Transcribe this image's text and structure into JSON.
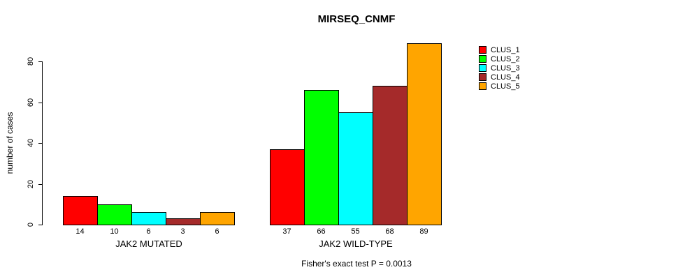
{
  "chart_data": {
    "type": "bar",
    "title": "MIRSEQ_CNMF",
    "ylabel": "number of cases",
    "xlabel": "",
    "categories": [
      "JAK2 MUTATED",
      "JAK2 WILD-TYPE"
    ],
    "series": [
      {
        "name": "CLUS_1",
        "color": "#FF0000",
        "values": [
          14,
          37
        ]
      },
      {
        "name": "CLUS_2",
        "color": "#00FF00",
        "values": [
          10,
          66
        ]
      },
      {
        "name": "CLUS_3",
        "color": "#00FFFF",
        "values": [
          6,
          55
        ]
      },
      {
        "name": "CLUS_4",
        "color": "#A52A2A",
        "values": [
          3,
          68
        ]
      },
      {
        "name": "CLUS_5",
        "color": "#FFA500",
        "values": [
          6,
          89
        ]
      }
    ],
    "bar_value_labels": [
      [
        14,
        10,
        6,
        3,
        6
      ],
      [
        37,
        66,
        55,
        68,
        89
      ]
    ],
    "yticks": [
      0,
      20,
      40,
      60,
      80
    ],
    "ylim": [
      0,
      89
    ],
    "grid": false,
    "legend_position": "right",
    "footnote": "Fisher's exact test P = 0.0013"
  },
  "legend": {
    "items": [
      {
        "label": "CLUS_1",
        "color": "#FF0000"
      },
      {
        "label": "CLUS_2",
        "color": "#00FF00"
      },
      {
        "label": "CLUS_3",
        "color": "#00FFFF"
      },
      {
        "label": "CLUS_4",
        "color": "#A52A2A"
      },
      {
        "label": "CLUS_5",
        "color": "#FFA500"
      }
    ]
  }
}
